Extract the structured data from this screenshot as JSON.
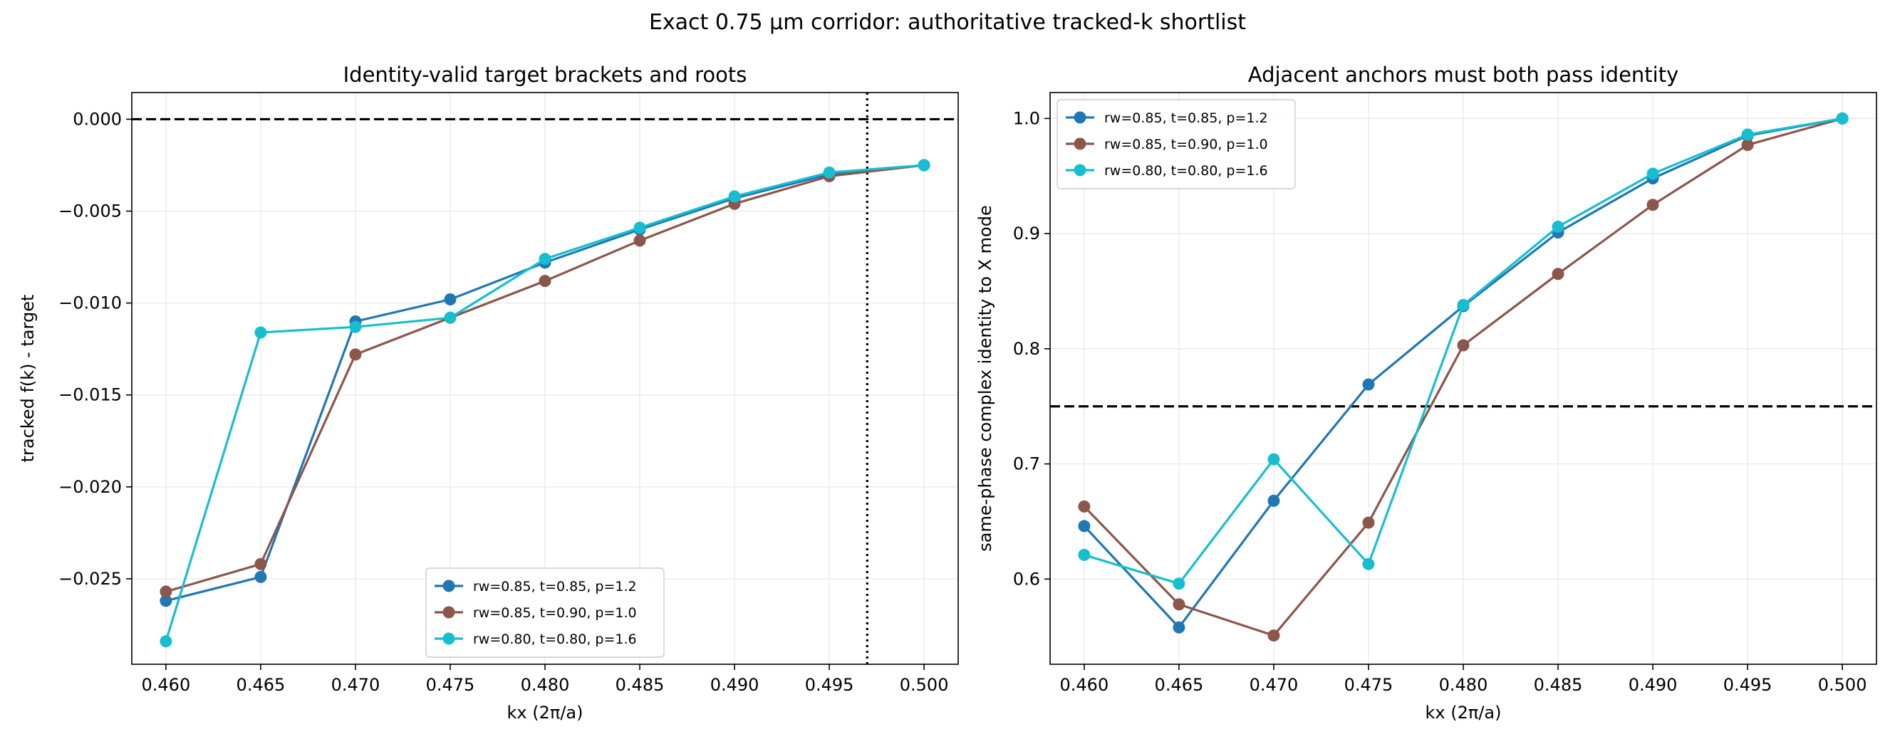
{
  "suptitle": "Exact 0.75 µm corridor: authoritative tracked-k shortlist",
  "chart_data": [
    {
      "type": "line",
      "title": "Identity-valid target brackets and roots",
      "xlabel": "kx (2π/a)",
      "ylabel": "tracked f(k) - target",
      "xlim": [
        0.4582,
        0.5018
      ],
      "ylim": [
        -0.02965,
        0.00145
      ],
      "xticks": [
        0.46,
        0.465,
        0.47,
        0.475,
        0.48,
        0.485,
        0.49,
        0.495,
        0.5
      ],
      "xtick_labels": [
        "0.460",
        "0.465",
        "0.470",
        "0.475",
        "0.480",
        "0.485",
        "0.490",
        "0.495",
        "0.500"
      ],
      "yticks": [
        0.0,
        -0.005,
        -0.01,
        -0.015,
        -0.02,
        -0.025
      ],
      "ytick_labels": [
        "0.000",
        "−0.005",
        "−0.010",
        "−0.015",
        "−0.020",
        "−0.025"
      ],
      "grid": true,
      "legend_position": "lower center",
      "hlines": [
        {
          "y": 0.0,
          "style": "dashed",
          "color": "#000000"
        }
      ],
      "vlines": [
        {
          "x": 0.497,
          "style": "dotted",
          "color": "#000000"
        }
      ],
      "x": [
        0.46,
        0.465,
        0.47,
        0.475,
        0.48,
        0.485,
        0.49,
        0.495,
        0.5
      ],
      "series": [
        {
          "name": "rw=0.85, t=0.85, p=1.2",
          "color": "#1f77b4",
          "values": [
            -0.0262,
            -0.0249,
            -0.011,
            -0.0098,
            -0.0078,
            -0.006,
            -0.0043,
            -0.003,
            -0.0025
          ]
        },
        {
          "name": "rw=0.85, t=0.90, p=1.0",
          "color": "#8c564b",
          "values": [
            -0.0257,
            -0.0242,
            -0.0128,
            -0.0108,
            -0.0088,
            -0.0066,
            -0.0046,
            -0.0031,
            -0.0025
          ]
        },
        {
          "name": "rw=0.80, t=0.80, p=1.6",
          "color": "#17becf",
          "values": [
            -0.0284,
            -0.0116,
            -0.0113,
            -0.0108,
            -0.0076,
            -0.0059,
            -0.0042,
            -0.0029,
            -0.0025
          ]
        }
      ]
    },
    {
      "type": "line",
      "title": "Adjacent anchors must both pass identity",
      "xlabel": "kx (2π/a)",
      "ylabel": "same-phase complex identity to X mode",
      "xlim": [
        0.4582,
        0.5018
      ],
      "ylim": [
        0.526,
        1.0225
      ],
      "xticks": [
        0.46,
        0.465,
        0.47,
        0.475,
        0.48,
        0.485,
        0.49,
        0.495,
        0.5
      ],
      "xtick_labels": [
        "0.460",
        "0.465",
        "0.470",
        "0.475",
        "0.480",
        "0.485",
        "0.490",
        "0.495",
        "0.500"
      ],
      "yticks": [
        0.6,
        0.7,
        0.8,
        0.9,
        1.0
      ],
      "ytick_labels": [
        "0.6",
        "0.7",
        "0.8",
        "0.9",
        "1.0"
      ],
      "grid": true,
      "legend_position": "upper left",
      "hlines": [
        {
          "y": 0.75,
          "style": "dashed",
          "color": "#000000"
        }
      ],
      "vlines": [],
      "x": [
        0.46,
        0.465,
        0.47,
        0.475,
        0.48,
        0.485,
        0.49,
        0.495,
        0.5
      ],
      "series": [
        {
          "name": "rw=0.85, t=0.85, p=1.2",
          "color": "#1f77b4",
          "values": [
            0.646,
            0.558,
            0.668,
            0.769,
            0.837,
            0.901,
            0.948,
            0.985,
            1.0
          ]
        },
        {
          "name": "rw=0.85, t=0.90, p=1.0",
          "color": "#8c564b",
          "values": [
            0.663,
            0.578,
            0.551,
            0.649,
            0.803,
            0.865,
            0.925,
            0.977,
            1.0
          ]
        },
        {
          "name": "rw=0.80, t=0.80, p=1.6",
          "color": "#17becf",
          "values": [
            0.621,
            0.596,
            0.704,
            0.613,
            0.838,
            0.906,
            0.952,
            0.986,
            1.0
          ]
        }
      ]
    }
  ]
}
